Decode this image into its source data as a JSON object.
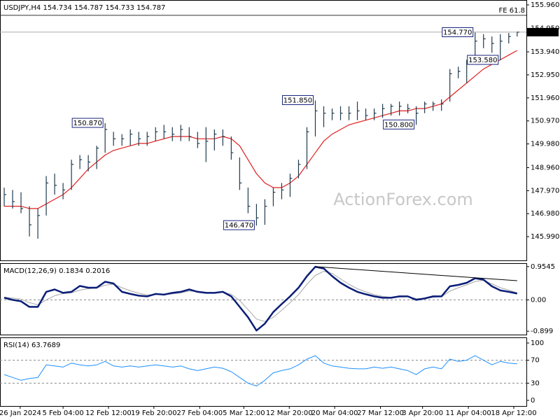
{
  "chart_data": [
    {
      "type": "ohlc",
      "title": "USDJPY,H4  154.734 154.787 154.733 154.787",
      "watermark": "ActionForex.com",
      "color": "#1f3b4d",
      "x": [
        0.5,
        1.5,
        2.5,
        3.5,
        4.5,
        5.5,
        6.5,
        7.5,
        8.5,
        9.5,
        10.5,
        11.5,
        12.5,
        13.5,
        14.5,
        15.5,
        16.5,
        17.5,
        18.5,
        19.5,
        20.5,
        21.5,
        22.5,
        23.5,
        24.5,
        25.5,
        26.5,
        27.5,
        28.5,
        29.5,
        30.5,
        31.5,
        32.5,
        33.5,
        34.5,
        35.5,
        36.5,
        37.5,
        38.5,
        39.5,
        40.5,
        41.5,
        42.5,
        43.5,
        44.5,
        45.5,
        46.5,
        47.5,
        48.5,
        49.5,
        50.5,
        51.5,
        52.5,
        53.5,
        54.5,
        55.5,
        56.5,
        57.5,
        58.5,
        59.5,
        60.5,
        61.5
      ],
      "high": [
        148.1,
        148.0,
        147.9,
        147.3,
        147.2,
        148.6,
        148.7,
        148.3,
        149.3,
        149.5,
        149.5,
        149.9,
        150.87,
        150.5,
        150.4,
        150.6,
        150.5,
        150.5,
        150.7,
        150.8,
        150.7,
        150.8,
        150.7,
        150.5,
        150.7,
        150.6,
        150.6,
        150.3,
        149.4,
        148.1,
        147.4,
        147.6,
        148.1,
        148.3,
        148.7,
        149.3,
        150.7,
        151.85,
        151.6,
        151.5,
        151.6,
        151.6,
        151.8,
        151.5,
        151.5,
        151.7,
        151.7,
        151.8,
        151.7,
        151.6,
        151.8,
        151.8,
        151.9,
        153.2,
        153.3,
        153.6,
        154.77,
        154.7,
        154.6,
        154.7,
        154.75,
        154.8
      ],
      "low": [
        147.3,
        147.2,
        147.0,
        146.0,
        145.9,
        146.9,
        147.8,
        147.6,
        148.0,
        148.9,
        148.8,
        148.9,
        149.6,
        149.9,
        149.9,
        149.9,
        149.9,
        149.9,
        150.1,
        150.2,
        150.1,
        150.1,
        150.1,
        149.8,
        149.2,
        149.7,
        149.9,
        149.3,
        148.0,
        147.0,
        146.47,
        146.5,
        147.3,
        147.6,
        147.7,
        148.5,
        148.9,
        150.3,
        150.7,
        151.0,
        151.0,
        151.0,
        151.0,
        151.0,
        151.0,
        151.1,
        151.2,
        151.2,
        151.3,
        150.8,
        151.3,
        151.4,
        151.4,
        151.8,
        152.8,
        152.6,
        153.5,
        154.1,
        153.9,
        153.58,
        154.3,
        154.6
      ],
      "close": [
        147.8,
        147.5,
        147.2,
        146.5,
        146.9,
        148.3,
        148.2,
        148.0,
        149.1,
        149.3,
        149.2,
        149.8,
        150.6,
        150.2,
        150.2,
        150.4,
        150.2,
        150.3,
        150.5,
        150.5,
        150.4,
        150.6,
        150.3,
        150.0,
        150.1,
        150.4,
        150.3,
        149.6,
        148.3,
        147.3,
        146.8,
        147.3,
        147.9,
        148.0,
        148.5,
        149.1,
        150.5,
        151.4,
        151.3,
        151.3,
        151.3,
        151.3,
        151.4,
        151.2,
        151.3,
        151.5,
        151.6,
        151.6,
        151.5,
        151.3,
        151.7,
        151.7,
        151.7,
        153.0,
        153.1,
        153.5,
        154.4,
        154.5,
        154.3,
        154.4,
        154.6,
        154.787
      ],
      "overlays": [
        {
          "color": "#e02020",
          "values": [
            147.3,
            147.3,
            147.3,
            147.2,
            147.2,
            147.4,
            147.6,
            147.8,
            148.1,
            148.5,
            148.9,
            149.2,
            149.5,
            149.7,
            149.8,
            149.9,
            150.0,
            150.0,
            150.1,
            150.2,
            150.3,
            150.3,
            150.3,
            150.2,
            150.2,
            150.2,
            150.3,
            150.2,
            149.9,
            149.3,
            148.7,
            148.3,
            148.1,
            148.1,
            148.3,
            148.6,
            149.1,
            149.6,
            150.1,
            150.4,
            150.6,
            150.8,
            150.9,
            151.0,
            151.1,
            151.2,
            151.3,
            151.4,
            151.4,
            151.5,
            151.5,
            151.6,
            151.7,
            152.0,
            152.3,
            152.6,
            152.9,
            153.2,
            153.4,
            153.6,
            153.8,
            154.0
          ]
        }
      ],
      "annotations": [
        {
          "label": "150.870",
          "value": 150.87,
          "x": 12.5
        },
        {
          "label": "146.470",
          "value": 146.47,
          "x": 30.5
        },
        {
          "label": "151.850",
          "value": 151.85,
          "x": 37.5
        },
        {
          "label": "150.800",
          "value": 150.8,
          "x": 49.5
        },
        {
          "label": "154.770",
          "value": 154.77,
          "x": 56.5
        },
        {
          "label": "153.580",
          "value": 153.58,
          "x": 59.5
        }
      ],
      "fe_level": {
        "value": 155.51,
        "label": "FE 61.8"
      },
      "current": {
        "value": 154.787,
        "label": "154.787"
      },
      "xlim": [
        0,
        62.6
      ],
      "ylim": [
        144.97,
        156.17
      ],
      "yticks": [
        {
          "value": 155.96,
          "label": "155.960"
        },
        {
          "value": 154.95,
          "label": "154.950"
        },
        {
          "value": 153.94,
          "label": "153.940"
        },
        {
          "value": 152.95,
          "label": "152.950"
        },
        {
          "value": 151.96,
          "label": "151.960"
        },
        {
          "value": 150.97,
          "label": "150.970"
        },
        {
          "value": 149.98,
          "label": "149.980"
        },
        {
          "value": 148.96,
          "label": "148.960"
        },
        {
          "value": 147.97,
          "label": "147.970"
        },
        {
          "value": 146.98,
          "label": "146.980"
        },
        {
          "value": 145.99,
          "label": "145.990"
        }
      ]
    },
    {
      "type": "line",
      "title": "MACD(12,26,9) 0.1834 0.2016",
      "x": [
        0.5,
        1.5,
        2.5,
        3.5,
        4.5,
        5.5,
        6.5,
        7.5,
        8.5,
        9.5,
        10.5,
        11.5,
        12.5,
        13.5,
        14.5,
        15.5,
        16.5,
        17.5,
        18.5,
        19.5,
        20.5,
        21.5,
        22.5,
        23.5,
        24.5,
        25.5,
        26.5,
        27.5,
        28.5,
        29.5,
        30.5,
        31.5,
        32.5,
        33.5,
        34.5,
        35.5,
        36.5,
        37.5,
        38.5,
        39.5,
        40.5,
        41.5,
        42.5,
        43.5,
        44.5,
        45.5,
        46.5,
        47.5,
        48.5,
        49.5,
        50.5,
        51.5,
        52.5,
        53.5,
        54.5,
        55.5,
        56.5,
        57.5,
        58.5,
        59.5,
        60.5,
        61.5
      ],
      "series": [
        {
          "color": "#a8a8a8",
          "line_width": 1,
          "values": [
            0.08,
            0.05,
            0.02,
            -0.08,
            -0.14,
            0.0,
            0.12,
            0.18,
            0.2,
            0.28,
            0.32,
            0.34,
            0.42,
            0.45,
            0.35,
            0.26,
            0.19,
            0.14,
            0.15,
            0.15,
            0.17,
            0.2,
            0.25,
            0.25,
            0.22,
            0.21,
            0.22,
            0.16,
            -0.02,
            -0.28,
            -0.55,
            -0.62,
            -0.5,
            -0.3,
            -0.08,
            0.15,
            0.45,
            0.7,
            0.82,
            0.76,
            0.6,
            0.45,
            0.32,
            0.23,
            0.15,
            0.1,
            0.07,
            0.08,
            0.09,
            0.04,
            0.04,
            0.07,
            0.09,
            0.25,
            0.35,
            0.43,
            0.53,
            0.56,
            0.46,
            0.35,
            0.28,
            0.2
          ]
        },
        {
          "color": "#0a1e78",
          "line_width": 2.5,
          "values": [
            0.06,
            0,
            -0.04,
            -0.2,
            -0.2,
            0.23,
            0.3,
            0.2,
            0.23,
            0.4,
            0.35,
            0.35,
            0.52,
            0.47,
            0.23,
            0.17,
            0.12,
            0.1,
            0.17,
            0.15,
            0.2,
            0.23,
            0.3,
            0.23,
            0.2,
            0.2,
            0.23,
            0.1,
            -0.2,
            -0.5,
            -0.88,
            -0.68,
            -0.35,
            -0.12,
            0.1,
            0.35,
            0.68,
            0.95,
            0.9,
            0.68,
            0.49,
            0.35,
            0.23,
            0.16,
            0.1,
            0.06,
            0.06,
            0.1,
            0.1,
            0,
            0.04,
            0.1,
            0.1,
            0.39,
            0.43,
            0.49,
            0.62,
            0.58,
            0.39,
            0.27,
            0.23,
            0.18
          ]
        }
      ],
      "trendline": {
        "x": [
          37.5,
          61.5
        ],
        "values": [
          0.9545,
          0.55
        ]
      },
      "levels": [
        0
      ],
      "xlim": [
        0,
        62.6
      ],
      "ylim": [
        -0.996,
        1.052
      ],
      "yticks": [
        0.9545,
        {
          "value": 0,
          "label": "0.00"
        },
        -0.899
      ]
    },
    {
      "type": "line",
      "title": "RSI(14) 63.7689",
      "x": [
        0.5,
        1.5,
        2.5,
        3.5,
        4.5,
        5.5,
        6.5,
        7.5,
        8.5,
        9.5,
        10.5,
        11.5,
        12.5,
        13.5,
        14.5,
        15.5,
        16.5,
        17.5,
        18.5,
        19.5,
        20.5,
        21.5,
        22.5,
        23.5,
        24.5,
        25.5,
        26.5,
        27.5,
        28.5,
        29.5,
        30.5,
        31.5,
        32.5,
        33.5,
        34.5,
        35.5,
        36.5,
        37.5,
        38.5,
        39.5,
        40.5,
        41.5,
        42.5,
        43.5,
        44.5,
        45.5,
        46.5,
        47.5,
        48.5,
        49.5,
        50.5,
        51.5,
        52.5,
        53.5,
        54.5,
        55.5,
        56.5,
        57.5,
        58.5,
        59.5,
        60.5,
        61.5
      ],
      "series": [
        {
          "color": "#1e90ff",
          "line_width": 1,
          "values": [
            45,
            40,
            35,
            38,
            40,
            62,
            60,
            58,
            65,
            62,
            60,
            62,
            68,
            60,
            58,
            60,
            58,
            60,
            62,
            60,
            58,
            60,
            55,
            52,
            55,
            58,
            56,
            50,
            40,
            30,
            25,
            35,
            48,
            52,
            55,
            62,
            72,
            78,
            65,
            60,
            58,
            56,
            55,
            55,
            58,
            56,
            58,
            55,
            52,
            45,
            55,
            58,
            55,
            72,
            68,
            70,
            78,
            70,
            62,
            68,
            65,
            63.7689
          ]
        }
      ],
      "levels": [
        70,
        30
      ],
      "xlim": [
        0,
        62.6
      ],
      "ylim": [
        -9.8,
        109.8
      ],
      "yticks": [
        100,
        70,
        30,
        0
      ],
      "xticks": [
        {
          "value": 2.4,
          "label": "26 Jan 2024"
        },
        {
          "value": 7.5,
          "label": "5 Feb 04:00"
        },
        {
          "value": 12.9,
          "label": "12 Feb 12:00"
        },
        {
          "value": 18.3,
          "label": "19 Feb 20:00"
        },
        {
          "value": 23.75,
          "label": "27 Feb 04:00"
        },
        {
          "value": 29,
          "label": "5 Mar 12:00"
        },
        {
          "value": 34.4,
          "label": "12 Mar 20:00"
        },
        {
          "value": 39.8,
          "label": "20 Mar 04:00"
        },
        {
          "value": 45.25,
          "label": "27 Mar 12:00"
        },
        {
          "value": 50.25,
          "label": "3 Apr 20:00"
        },
        {
          "value": 55.7,
          "label": "11 Apr 04:00"
        },
        {
          "value": 61.1,
          "label": "18 Apr 12:00"
        }
      ]
    }
  ]
}
